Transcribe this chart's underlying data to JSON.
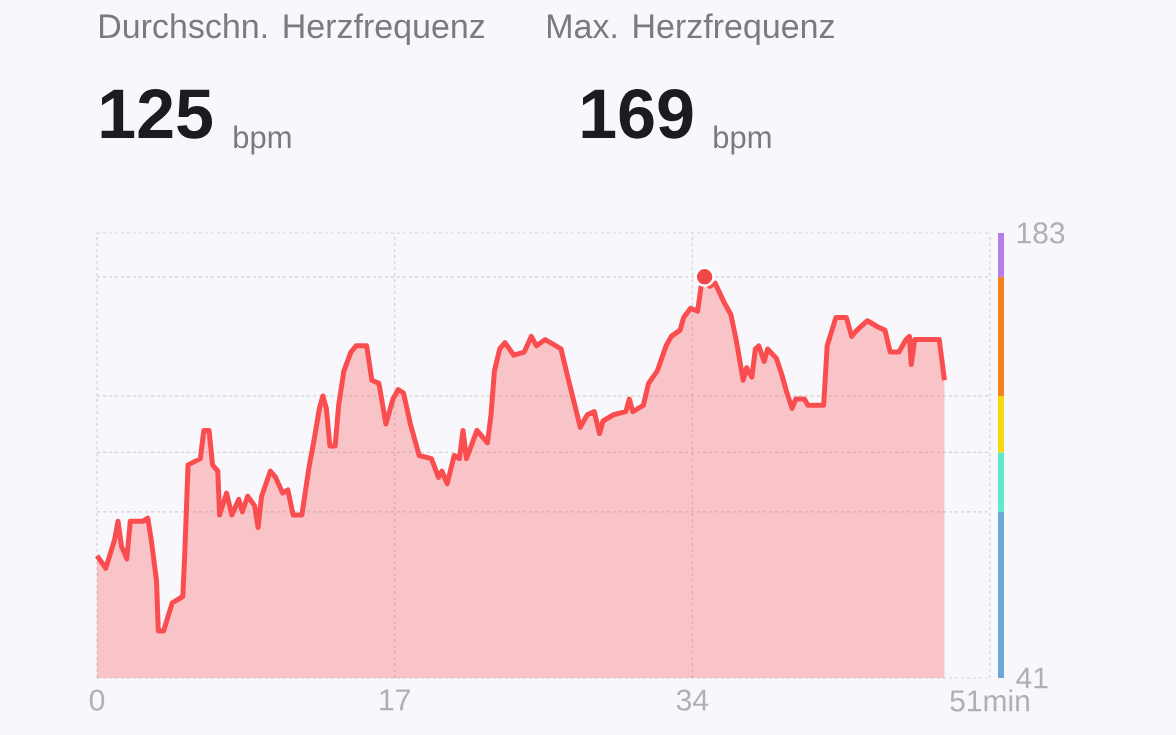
{
  "chart_data": {
    "type": "area",
    "annotations": [
      "Durchschn. Herzfrequenz",
      "Max. Herzfrequenz",
      "125",
      "bpm",
      "169",
      "bpm"
    ],
    "x": [
      0,
      0.5,
      1.0,
      1.2,
      1.4,
      1.7,
      1.9,
      2.6,
      2.9,
      3.1,
      3.4,
      3.5,
      3.8,
      4.3,
      4.9,
      5.0,
      5.2,
      5.9,
      6.1,
      6.4,
      6.6,
      6.9,
      7.0,
      7.4,
      7.7,
      8.1,
      8.3,
      8.6,
      9.0,
      9.2,
      9.4,
      9.9,
      10.2,
      10.6,
      10.9,
      11.2,
      11.7,
      12.1,
      12.4,
      12.7,
      12.9,
      13.1,
      13.3,
      13.6,
      13.8,
      14.1,
      14.5,
      14.8,
      15.4,
      15.7,
      16.1,
      16.5,
      16.9,
      17.2,
      17.5,
      17.9,
      18.4,
      19.1,
      19.5,
      19.7,
      20.0,
      20.4,
      20.7,
      20.9,
      21.1,
      21.7,
      22.3,
      22.5,
      22.7,
      23.0,
      23.3,
      23.8,
      24.4,
      24.8,
      25.1,
      25.6,
      26.2,
      26.5,
      26.8,
      27.2,
      27.6,
      28.0,
      28.4,
      28.7,
      28.9,
      29.5,
      30.2,
      30.4,
      30.6,
      31.2,
      31.5,
      32.0,
      32.5,
      32.8,
      33.3,
      33.5,
      33.9,
      34.3,
      34.5,
      34.7,
      35.0,
      35.3,
      35.8,
      36.2,
      36.5,
      36.9,
      37.1,
      37.4,
      37.6,
      37.8,
      38.1,
      38.3,
      38.8,
      39.1,
      39.4,
      39.7,
      39.9,
      40.4,
      40.6,
      41.5,
      41.7,
      42.2,
      42.8,
      43.1,
      43.4,
      44.0,
      44.6,
      45.0,
      45.3,
      45.8,
      46.2,
      46.4,
      46.5,
      46.7,
      47.9,
      48.1,
      48.4
    ],
    "series": [
      {
        "color": "#fa4d50",
        "values": [
          80,
          76,
          85,
          91,
          83,
          79,
          91,
          91,
          92,
          85,
          72,
          56,
          56,
          65,
          67,
          79,
          109,
          111,
          120,
          120,
          109,
          107,
          93,
          100,
          93,
          98,
          94,
          99,
          96,
          89,
          99,
          107,
          105,
          100,
          101,
          93,
          93,
          108,
          117,
          127,
          131,
          127,
          115,
          115,
          128,
          139,
          145,
          147,
          147,
          136,
          135,
          122,
          130,
          133,
          132,
          122,
          112,
          111,
          105,
          107,
          103,
          112,
          111,
          120,
          111,
          120,
          116,
          125,
          139,
          146,
          148,
          144,
          145,
          150,
          147,
          149,
          147,
          146,
          139,
          130,
          121,
          125,
          126,
          119,
          123,
          125,
          126,
          130,
          126,
          128,
          135,
          139,
          147,
          150,
          152,
          156,
          159,
          158,
          166,
          169,
          166,
          167,
          161,
          157,
          149,
          136,
          140,
          137,
          146,
          147,
          142,
          146,
          143,
          138,
          132,
          127,
          130,
          130,
          128,
          128,
          147,
          156,
          156,
          150,
          152,
          155,
          153,
          152,
          145,
          145,
          149,
          150,
          141,
          149,
          149,
          149,
          136
        ]
      },
      {
        "type": "scatter",
        "color": "#f04848",
        "x": [
          34.7
        ],
        "values": [
          169
        ]
      }
    ],
    "xlim": [
      0,
      51
    ],
    "xticks": [
      0,
      17,
      34,
      {
        "value": 51,
        "label": "51min"
      }
    ],
    "ylim": [
      41,
      183
    ],
    "yticks": [
      41,
      {
        "value": 94,
        "label": null
      },
      {
        "value": 113,
        "label": null
      },
      {
        "value": 131,
        "label": null
      },
      {
        "value": 169,
        "label": null
      },
      183
    ],
    "grid": true
  }
}
